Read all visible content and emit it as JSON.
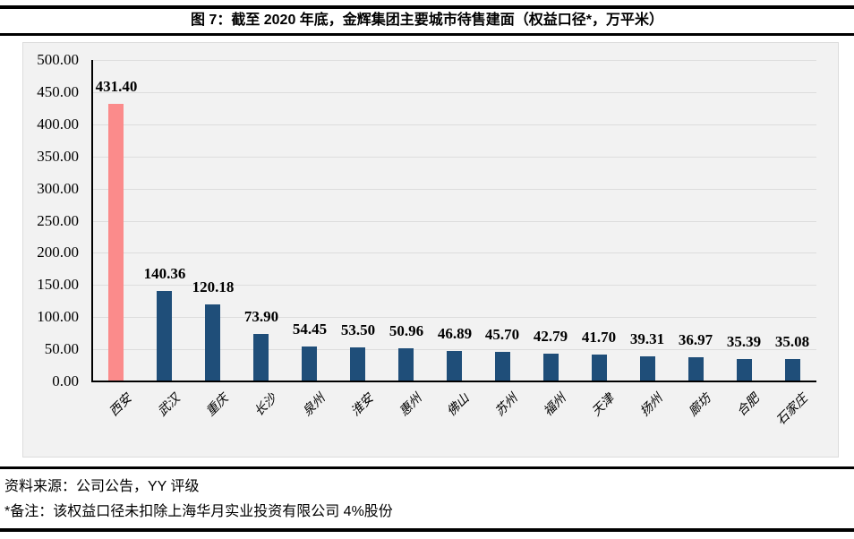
{
  "header": {
    "title": "图 7：截至 2020 年底，金辉集团主要城市待售建面（权益口径*，万平米）"
  },
  "chart_data": {
    "type": "bar",
    "title": "图 7：截至 2020 年底，金辉集团主要城市待售建面（权益口径*，万平米）",
    "categories": [
      "西安",
      "武汉",
      "重庆",
      "长沙",
      "泉州",
      "淮安",
      "惠州",
      "佛山",
      "苏州",
      "福州",
      "天津",
      "扬州",
      "廊坊",
      "合肥",
      "石家庄"
    ],
    "values": [
      431.4,
      140.36,
      120.18,
      73.9,
      54.45,
      53.5,
      50.96,
      46.89,
      45.7,
      42.79,
      41.7,
      39.31,
      36.97,
      35.39,
      35.08
    ],
    "value_labels": [
      "431.40",
      "140.36",
      "120.18",
      "73.90",
      "54.45",
      "53.50",
      "50.96",
      "46.89",
      "45.70",
      "42.79",
      "41.70",
      "39.31",
      "36.97",
      "35.39",
      "35.08"
    ],
    "xlabel": "",
    "ylabel": "",
    "ylim": [
      0,
      500
    ],
    "ytick_step": 50,
    "ytick_labels": [
      "500.00",
      "450.00",
      "400.00",
      "350.00",
      "300.00",
      "250.00",
      "200.00",
      "150.00",
      "100.00",
      "50.00",
      "0.00"
    ],
    "grid": true,
    "legend": false,
    "highlight_index": 0,
    "colors": {
      "highlight_bar": "#FB8B8B",
      "bar": "#1F4E79",
      "plot_background": "#F2F2F2",
      "gridline": "#DDDDDD",
      "axis": "#000000"
    }
  },
  "footer": {
    "source": "资料来源：公司公告，YY 评级",
    "note": "*备注：该权益口径未扣除上海华月实业投资有限公司 4%股份"
  }
}
